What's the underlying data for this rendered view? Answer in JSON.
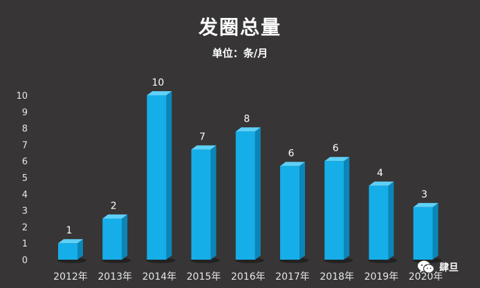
{
  "chart_data": {
    "type": "bar",
    "title": "发圈总量",
    "subtitle": "单位：条/月",
    "categories": [
      "2012年",
      "2013年",
      "2014年",
      "2015年",
      "2016年",
      "2017年",
      "2018年",
      "2019年",
      "2020年"
    ],
    "values": [
      1,
      2.5,
      10,
      6.7,
      7.8,
      5.7,
      6,
      4.5,
      3.2
    ],
    "data_labels": [
      "1",
      "2",
      "10",
      "7",
      "8",
      "6",
      "6",
      "4",
      "3"
    ],
    "ylim": [
      0,
      10
    ],
    "yticks": [
      "0",
      "1",
      "2",
      "3",
      "4",
      "5",
      "6",
      "7",
      "8",
      "9",
      "10"
    ],
    "xlabel": "",
    "ylabel": "",
    "grid": false,
    "bar_color": "#16aee8",
    "bar_side_color": "#0b86b8",
    "bar_top_color": "#5fd0f7"
  },
  "watermark": {
    "text": "肆旦",
    "icon": "wechat-icon"
  }
}
